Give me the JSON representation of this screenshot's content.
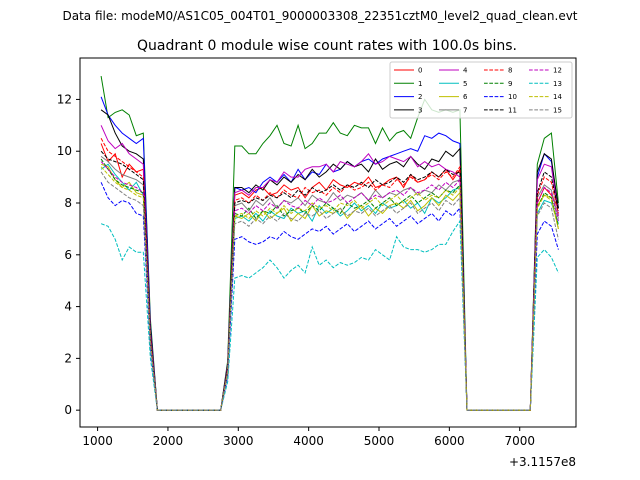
{
  "figure": {
    "suptitle": "Data file: modeM0/AS1C05_004T01_9000003308_22351cztM0_level2_quad_clean.evt",
    "offset_label": "+3.1157e8"
  },
  "chart_data": {
    "type": "line",
    "title": "Quadrant 0 module wise count rates with 100.0s bins.",
    "xlabel": "",
    "ylabel": "",
    "x_offset": 311570000,
    "xlim": [
      750,
      7800
    ],
    "ylim": [
      -0.65,
      13.6
    ],
    "xticks": [
      1000,
      2000,
      3000,
      4000,
      5000,
      6000,
      7000
    ],
    "yticks": [
      0,
      2,
      4,
      6,
      8,
      10,
      12
    ],
    "grid": false,
    "legend": {
      "placement": "top-right",
      "columns": 4
    },
    "x": [
      1050,
      1150,
      1250,
      1350,
      1450,
      1550,
      1650,
      1750,
      1850,
      2750,
      2850,
      2950,
      3050,
      3150,
      3250,
      3350,
      3450,
      3550,
      3650,
      3750,
      3850,
      3950,
      4050,
      4150,
      4250,
      4350,
      4450,
      4550,
      4650,
      4750,
      4850,
      4950,
      5050,
      5150,
      5250,
      5350,
      5450,
      5550,
      5650,
      5750,
      5850,
      5950,
      6050,
      6150,
      6250,
      6350,
      7150,
      7250,
      7350,
      7450,
      7550
    ],
    "series": [
      {
        "name": "0",
        "color": "#ff0000",
        "dash": "solid",
        "values": [
          10.3,
          9.6,
          9.9,
          9.0,
          9.5,
          9.2,
          9.3,
          3.0,
          0,
          0,
          1.6,
          8.3,
          8.4,
          8.2,
          8.5,
          8.6,
          8.3,
          8.4,
          8.7,
          8.5,
          8.6,
          8.2,
          8.6,
          8.8,
          8.5,
          8.9,
          8.7,
          8.6,
          8.8,
          8.7,
          9.0,
          8.6,
          8.7,
          8.9,
          9.0,
          8.6,
          9.1,
          8.8,
          8.9,
          9.2,
          9.0,
          9.3,
          8.9,
          9.3,
          0,
          0,
          0,
          8.0,
          8.6,
          8.3,
          7.8
        ]
      },
      {
        "name": "1",
        "color": "#008000",
        "dash": "solid",
        "values": [
          12.9,
          11.3,
          11.5,
          11.6,
          11.4,
          10.6,
          10.7,
          3.5,
          0,
          0,
          1.9,
          10.2,
          10.2,
          9.9,
          9.9,
          10.3,
          10.6,
          11.0,
          10.3,
          10.2,
          11.0,
          10.1,
          10.3,
          10.7,
          10.7,
          11.1,
          10.7,
          10.6,
          11.0,
          10.9,
          10.9,
          10.3,
          10.9,
          10.4,
          10.7,
          10.8,
          10.5,
          11.3,
          12.0,
          11.6,
          11.5,
          11.6,
          11.5,
          11.6,
          0,
          0,
          0,
          9.5,
          10.5,
          10.7,
          8.0
        ]
      },
      {
        "name": "2",
        "color": "#0000ff",
        "dash": "solid",
        "values": [
          12.1,
          11.4,
          11.0,
          10.7,
          10.5,
          10.3,
          10.5,
          3.3,
          0,
          0,
          1.8,
          8.6,
          8.5,
          8.6,
          8.4,
          8.8,
          9.0,
          8.8,
          9.1,
          8.8,
          9.3,
          8.9,
          9.2,
          9.1,
          9.5,
          9.2,
          9.3,
          9.6,
          9.4,
          9.6,
          9.7,
          9.5,
          9.7,
          9.8,
          9.9,
          10.0,
          10.1,
          10.0,
          10.6,
          10.5,
          10.7,
          10.6,
          10.4,
          10.3,
          0,
          0,
          0,
          9.0,
          9.9,
          9.6,
          7.8
        ]
      },
      {
        "name": "3",
        "color": "#000000",
        "dash": "solid",
        "values": [
          11.6,
          11.4,
          10.7,
          10.2,
          10.0,
          9.9,
          9.7,
          3.2,
          0,
          0,
          1.8,
          8.6,
          8.6,
          8.4,
          8.7,
          8.5,
          8.9,
          8.7,
          9.0,
          8.8,
          9.1,
          8.9,
          9.3,
          9.0,
          9.2,
          9.5,
          9.3,
          9.6,
          9.4,
          9.5,
          9.2,
          9.7,
          9.3,
          9.5,
          9.6,
          9.4,
          9.8,
          9.5,
          9.3,
          9.7,
          9.6,
          10.0,
          9.8,
          10.1,
          0,
          0,
          0,
          9.2,
          9.9,
          9.7,
          7.8
        ]
      },
      {
        "name": "4",
        "color": "#bf00bf",
        "dash": "solid",
        "values": [
          11.0,
          10.4,
          10.1,
          10.3,
          9.9,
          9.7,
          9.5,
          3.0,
          0,
          0,
          1.7,
          8.4,
          8.5,
          8.3,
          8.6,
          8.6,
          8.9,
          8.8,
          9.2,
          9.0,
          9.0,
          9.3,
          9.4,
          9.4,
          9.5,
          9.2,
          9.6,
          9.5,
          9.4,
          9.6,
          9.9,
          9.5,
          9.6,
          9.8,
          9.7,
          9.6,
          9.8,
          9.4,
          9.6,
          9.4,
          9.5,
          9.3,
          9.2,
          9.0,
          0,
          0,
          0,
          8.9,
          9.5,
          9.4,
          7.5
        ]
      },
      {
        "name": "5",
        "color": "#00bfbf",
        "dash": "solid",
        "values": [
          9.3,
          9.5,
          9.1,
          8.8,
          8.5,
          8.8,
          8.3,
          2.7,
          0,
          0,
          1.5,
          7.4,
          7.5,
          7.3,
          7.6,
          7.3,
          7.7,
          7.5,
          7.4,
          7.8,
          7.6,
          7.7,
          7.3,
          7.9,
          7.6,
          7.8,
          7.5,
          7.7,
          8.0,
          7.7,
          7.9,
          7.6,
          8.0,
          7.8,
          7.9,
          8.1,
          7.8,
          8.0,
          7.6,
          8.2,
          8.0,
          8.2,
          8.5,
          8.6,
          0,
          0,
          0,
          7.6,
          8.1,
          8.0,
          7.2
        ]
      },
      {
        "name": "6",
        "color": "#bfbf00",
        "dash": "solid",
        "values": [
          9.5,
          9.4,
          8.9,
          8.6,
          8.8,
          8.4,
          8.3,
          2.6,
          0,
          0,
          1.5,
          7.5,
          7.4,
          7.6,
          7.3,
          7.7,
          7.4,
          7.6,
          7.8,
          7.3,
          7.6,
          7.4,
          7.9,
          7.5,
          7.7,
          7.6,
          7.8,
          7.4,
          7.7,
          7.9,
          7.5,
          7.8,
          7.6,
          7.9,
          8.0,
          7.8,
          8.1,
          7.7,
          7.9,
          8.2,
          7.9,
          8.3,
          8.1,
          8.4,
          0,
          0,
          0,
          7.9,
          8.3,
          8.2,
          7.0
        ]
      },
      {
        "name": "7",
        "color": "#808080",
        "dash": "solid",
        "values": [
          9.8,
          9.6,
          9.3,
          9.1,
          9.0,
          8.9,
          8.7,
          2.8,
          0,
          0,
          1.6,
          7.9,
          8.0,
          7.7,
          8.1,
          7.9,
          8.2,
          7.8,
          8.1,
          8.0,
          8.2,
          7.9,
          8.3,
          8.1,
          8.0,
          8.4,
          8.1,
          8.3,
          8.2,
          8.4,
          8.1,
          8.5,
          8.2,
          8.4,
          8.3,
          8.5,
          8.6,
          8.3,
          8.5,
          8.4,
          8.7,
          8.5,
          8.8,
          8.9,
          0,
          0,
          0,
          8.2,
          8.7,
          8.5,
          7.4
        ]
      },
      {
        "name": "8",
        "color": "#ff0000",
        "dash": "dashed",
        "values": [
          10.5,
          10.0,
          9.8,
          9.6,
          9.4,
          9.2,
          9.0,
          2.9,
          0,
          0,
          1.6,
          8.1,
          8.2,
          8.0,
          8.3,
          8.1,
          8.4,
          8.2,
          8.5,
          8.3,
          8.2,
          8.6,
          8.4,
          8.5,
          8.3,
          8.6,
          8.4,
          8.7,
          8.5,
          8.6,
          8.8,
          8.5,
          8.7,
          8.6,
          8.9,
          8.7,
          9.0,
          8.8,
          8.9,
          9.1,
          8.9,
          9.2,
          9.0,
          9.4,
          0,
          0,
          0,
          8.3,
          9.0,
          8.8,
          7.6
        ]
      },
      {
        "name": "9",
        "color": "#008000",
        "dash": "dashed",
        "values": [
          9.7,
          9.3,
          8.9,
          8.7,
          8.6,
          8.5,
          8.4,
          2.7,
          0,
          0,
          1.5,
          7.6,
          7.5,
          7.8,
          7.4,
          7.7,
          7.6,
          7.9,
          7.5,
          7.7,
          7.8,
          7.6,
          7.9,
          7.7,
          8.0,
          7.8,
          7.6,
          8.0,
          7.8,
          7.9,
          8.1,
          7.8,
          8.0,
          8.2,
          7.9,
          8.1,
          8.3,
          8.0,
          8.2,
          8.4,
          8.2,
          8.5,
          8.4,
          8.7,
          0,
          0,
          0,
          7.8,
          8.4,
          8.2,
          7.1
        ]
      },
      {
        "name": "10",
        "color": "#0000ff",
        "dash": "dashed",
        "values": [
          8.8,
          8.2,
          7.9,
          8.1,
          8.0,
          7.6,
          7.5,
          2.4,
          0,
          0,
          1.3,
          6.6,
          6.7,
          6.5,
          6.4,
          6.5,
          6.7,
          6.6,
          6.9,
          6.7,
          6.6,
          6.8,
          7.0,
          6.9,
          7.1,
          6.8,
          7.0,
          7.2,
          6.9,
          7.1,
          7.3,
          7.0,
          7.2,
          7.4,
          7.1,
          7.3,
          7.5,
          7.2,
          7.4,
          7.6,
          7.3,
          7.7,
          7.5,
          7.8,
          0,
          0,
          0,
          6.8,
          7.3,
          7.1,
          6.2
        ]
      },
      {
        "name": "11",
        "color": "#000000",
        "dash": "dashed",
        "values": [
          10.0,
          9.7,
          9.6,
          9.5,
          9.3,
          9.1,
          8.9,
          2.8,
          0,
          0,
          1.6,
          8.0,
          8.1,
          8.0,
          8.2,
          8.1,
          8.3,
          8.2,
          8.4,
          8.2,
          8.5,
          8.3,
          8.6,
          8.4,
          8.5,
          8.7,
          8.5,
          8.7,
          8.6,
          8.8,
          8.6,
          8.9,
          8.7,
          8.8,
          9.0,
          8.8,
          9.1,
          8.9,
          9.0,
          9.2,
          9.0,
          9.3,
          9.1,
          9.2,
          0,
          0,
          0,
          8.4,
          9.2,
          9.0,
          7.7
        ]
      },
      {
        "name": "12",
        "color": "#bf00bf",
        "dash": "dashed",
        "values": [
          9.6,
          9.3,
          9.0,
          8.8,
          8.7,
          8.6,
          8.4,
          2.7,
          0,
          0,
          1.5,
          7.7,
          7.8,
          7.6,
          7.9,
          7.7,
          8.0,
          7.8,
          8.1,
          7.9,
          7.8,
          8.1,
          7.9,
          8.2,
          8.0,
          8.1,
          8.3,
          8.0,
          8.2,
          8.4,
          8.1,
          8.3,
          8.2,
          8.4,
          8.5,
          8.3,
          8.6,
          8.4,
          8.5,
          8.7,
          8.5,
          8.8,
          8.6,
          8.9,
          0,
          0,
          0,
          8.0,
          8.6,
          8.4,
          7.3
        ]
      },
      {
        "name": "13",
        "color": "#00bfbf",
        "dash": "dashed",
        "values": [
          7.2,
          7.1,
          6.6,
          5.8,
          6.3,
          6.1,
          6.1,
          2.0,
          0,
          0,
          1.1,
          5.1,
          5.2,
          5.1,
          5.3,
          5.5,
          5.8,
          5.5,
          5.1,
          5.4,
          5.6,
          5.3,
          6.3,
          5.6,
          5.8,
          5.5,
          5.7,
          5.6,
          5.7,
          5.9,
          5.8,
          6.2,
          6.0,
          5.8,
          6.7,
          6.3,
          6.2,
          6.2,
          6.1,
          6.2,
          6.4,
          6.4,
          6.9,
          7.3,
          0,
          0,
          0,
          5.9,
          6.2,
          5.9,
          5.3
        ]
      },
      {
        "name": "14",
        "color": "#bfbf00",
        "dash": "dashed",
        "values": [
          9.4,
          9.1,
          8.8,
          8.6,
          8.5,
          8.3,
          8.2,
          2.6,
          0,
          0,
          1.5,
          7.5,
          7.6,
          7.4,
          7.7,
          7.5,
          7.8,
          7.6,
          7.9,
          7.6,
          7.8,
          7.7,
          8.0,
          7.8,
          7.9,
          7.7,
          8.0,
          7.9,
          8.1,
          7.8,
          8.0,
          8.2,
          7.9,
          8.1,
          8.3,
          8.0,
          8.2,
          8.4,
          8.1,
          8.3,
          8.2,
          8.5,
          8.3,
          8.6,
          0,
          0,
          0,
          7.8,
          8.3,
          8.1,
          7.0
        ]
      },
      {
        "name": "15",
        "color": "#808080",
        "dash": "dashed",
        "values": [
          9.2,
          8.8,
          8.6,
          8.4,
          8.2,
          8.1,
          7.9,
          2.5,
          0,
          0,
          1.4,
          7.2,
          7.3,
          7.1,
          7.4,
          7.2,
          7.5,
          7.3,
          7.6,
          7.4,
          7.3,
          7.6,
          7.5,
          7.7,
          7.4,
          7.6,
          7.8,
          7.5,
          7.7,
          7.6,
          7.8,
          7.5,
          7.7,
          7.9,
          7.6,
          7.8,
          8.0,
          7.6,
          7.8,
          8.0,
          7.7,
          8.1,
          7.9,
          8.2,
          0,
          0,
          0,
          7.5,
          8.0,
          7.8,
          6.6
        ]
      }
    ]
  }
}
